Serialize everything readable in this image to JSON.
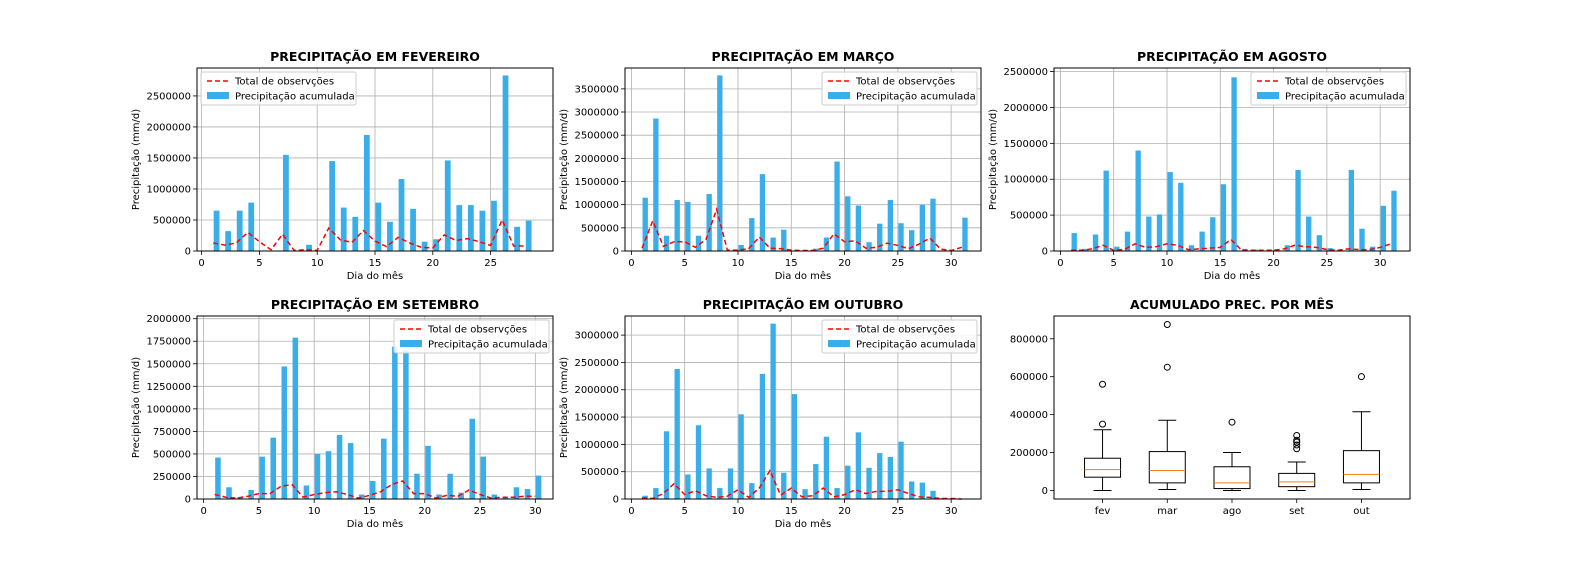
{
  "chart_data": [
    {
      "type": "bar",
      "title": "PRECIPITAÇÃO EM FEVEREIRO",
      "xlabel": "Dia do mês",
      "ylabel": "Precipitação (mm/d)",
      "xlim": [
        -0.4,
        30.4
      ],
      "ylim": [
        0,
        2950000
      ],
      "xticks": [
        0,
        5,
        10,
        15,
        20,
        25
      ],
      "yticks": [
        0,
        500000,
        1000000,
        1500000,
        2000000,
        2500000
      ],
      "legend_position": "top-left",
      "grid": true,
      "x": [
        1,
        2,
        3,
        4,
        5,
        6,
        7,
        8,
        9,
        10,
        11,
        12,
        13,
        14,
        15,
        16,
        17,
        18,
        19,
        20,
        21,
        22,
        23,
        24,
        25,
        26,
        27,
        28
      ],
      "series": [
        {
          "name": "Total de observções",
          "kind": "line",
          "color": "#ff0000",
          "values": [
            130000,
            95000,
            130000,
            300000,
            150000,
            20000,
            270000,
            10000,
            20000,
            10000,
            370000,
            180000,
            140000,
            330000,
            160000,
            70000,
            220000,
            130000,
            60000,
            50000,
            260000,
            170000,
            200000,
            150000,
            90000,
            500000,
            80000,
            80000
          ]
        },
        {
          "name": "Precipitação acumulada",
          "kind": "bar",
          "color": "#3aaee9",
          "values": [
            650000,
            320000,
            650000,
            780000,
            0,
            0,
            1550000,
            0,
            100000,
            0,
            1450000,
            700000,
            550000,
            1870000,
            780000,
            470000,
            1160000,
            680000,
            150000,
            190000,
            1460000,
            740000,
            740000,
            650000,
            810000,
            2830000,
            390000,
            490000
          ]
        }
      ]
    },
    {
      "type": "bar",
      "title": "PRECIPITAÇÃO EM MARÇO",
      "xlabel": "Dia do mês",
      "ylabel": "Precipitação (mm/d)",
      "xlim": [
        -0.6,
        32.8
      ],
      "ylim": [
        0,
        3950000
      ],
      "xticks": [
        0,
        5,
        10,
        15,
        20,
        25,
        30
      ],
      "yticks": [
        0,
        500000,
        1000000,
        1500000,
        2000000,
        2500000,
        3000000,
        3500000
      ],
      "legend_position": "top-right",
      "grid": true,
      "x": [
        1,
        2,
        3,
        4,
        5,
        6,
        7,
        8,
        9,
        10,
        11,
        12,
        13,
        14,
        15,
        16,
        17,
        18,
        19,
        20,
        21,
        22,
        23,
        24,
        25,
        26,
        27,
        28,
        29,
        30,
        31
      ],
      "series": [
        {
          "name": "Total de observções",
          "kind": "line",
          "color": "#ff0000",
          "values": [
            60000,
            650000,
            100000,
            200000,
            200000,
            80000,
            250000,
            900000,
            20000,
            20000,
            50000,
            300000,
            60000,
            50000,
            20000,
            10000,
            10000,
            60000,
            370000,
            200000,
            220000,
            60000,
            80000,
            170000,
            120000,
            50000,
            150000,
            280000,
            40000,
            10000,
            80000
          ]
        },
        {
          "name": "Precipitação acumulada",
          "kind": "bar",
          "color": "#3aaee9",
          "values": [
            1150000,
            2860000,
            330000,
            1100000,
            1060000,
            330000,
            1230000,
            3790000,
            0,
            130000,
            710000,
            1660000,
            290000,
            460000,
            0,
            0,
            50000,
            290000,
            1930000,
            1180000,
            980000,
            190000,
            590000,
            1100000,
            600000,
            450000,
            1000000,
            1130000,
            0,
            0,
            720000
          ]
        }
      ]
    },
    {
      "type": "bar",
      "title": "PRECIPITAÇÃO EM AGOSTO",
      "xlabel": "Dia do mês",
      "ylabel": "Precipitação (mm/d)",
      "xlim": [
        -0.6,
        32.8
      ],
      "ylim": [
        0,
        2550000
      ],
      "xticks": [
        0,
        5,
        10,
        15,
        20,
        25,
        30
      ],
      "yticks": [
        0,
        500000,
        1000000,
        1500000,
        2000000,
        2500000
      ],
      "legend_position": "top-right",
      "grid": true,
      "x": [
        1,
        2,
        3,
        4,
        5,
        6,
        7,
        8,
        9,
        10,
        11,
        12,
        13,
        14,
        15,
        16,
        17,
        18,
        19,
        20,
        21,
        22,
        23,
        24,
        25,
        26,
        27,
        28,
        29,
        30,
        31
      ],
      "series": [
        {
          "name": "Total de observções",
          "kind": "line",
          "color": "#ff0000",
          "values": [
            10000,
            10000,
            30000,
            80000,
            10000,
            20000,
            100000,
            50000,
            60000,
            100000,
            80000,
            20000,
            30000,
            40000,
            50000,
            160000,
            10000,
            10000,
            10000,
            10000,
            30000,
            80000,
            60000,
            50000,
            20000,
            10000,
            30000,
            20000,
            20000,
            50000,
            100000
          ]
        },
        {
          "name": "Precipitação acumulada",
          "kind": "bar",
          "color": "#3aaee9",
          "values": [
            250000,
            30000,
            230000,
            1120000,
            60000,
            270000,
            1400000,
            480000,
            510000,
            1100000,
            950000,
            80000,
            270000,
            470000,
            930000,
            2420000,
            30000,
            20000,
            0,
            20000,
            80000,
            1130000,
            480000,
            220000,
            40000,
            0,
            1130000,
            310000,
            60000,
            630000,
            840000
          ]
        }
      ]
    },
    {
      "type": "bar",
      "title": "PRECIPITAÇÃO EM SETEMBRO",
      "xlabel": "Dia do mês",
      "ylabel": "Precipitação (mm/d)",
      "xlim": [
        -0.6,
        31.6
      ],
      "ylim": [
        0,
        2030000
      ],
      "xticks": [
        0,
        5,
        10,
        15,
        20,
        25,
        30
      ],
      "yticks": [
        0,
        250000,
        500000,
        750000,
        1000000,
        1250000,
        1500000,
        1750000,
        2000000
      ],
      "legend_position": "top-right",
      "grid": true,
      "x": [
        1,
        2,
        3,
        4,
        5,
        6,
        7,
        8,
        9,
        10,
        11,
        12,
        13,
        14,
        15,
        16,
        17,
        18,
        19,
        20,
        21,
        22,
        23,
        24,
        25,
        26,
        27,
        28,
        29,
        30
      ],
      "series": [
        {
          "name": "Total de observções",
          "kind": "line",
          "color": "#ff0000",
          "values": [
            50000,
            20000,
            10000,
            30000,
            60000,
            60000,
            140000,
            160000,
            20000,
            50000,
            70000,
            80000,
            50000,
            10000,
            40000,
            80000,
            160000,
            200000,
            60000,
            60000,
            10000,
            40000,
            30000,
            100000,
            50000,
            10000,
            20000,
            20000,
            30000,
            30000
          ]
        },
        {
          "name": "Precipitação acumulada",
          "kind": "bar",
          "color": "#3aaee9",
          "values": [
            460000,
            130000,
            20000,
            100000,
            470000,
            680000,
            1470000,
            1790000,
            150000,
            500000,
            530000,
            710000,
            620000,
            50000,
            200000,
            670000,
            1690000,
            1650000,
            280000,
            590000,
            50000,
            280000,
            70000,
            890000,
            470000,
            50000,
            20000,
            130000,
            110000,
            260000
          ]
        }
      ]
    },
    {
      "type": "bar",
      "title": "PRECIPITAÇÃO EM OUTUBRO",
      "xlabel": "Dia do mês",
      "ylabel": "Precipitação (mm/d)",
      "xlim": [
        -0.6,
        32.8
      ],
      "ylim": [
        0,
        3350000
      ],
      "xticks": [
        0,
        5,
        10,
        15,
        20,
        25,
        30
      ],
      "yticks": [
        0,
        500000,
        1000000,
        1500000,
        2000000,
        2500000,
        3000000
      ],
      "legend_position": "top-right",
      "grid": true,
      "x": [
        1,
        2,
        3,
        4,
        5,
        6,
        7,
        8,
        9,
        10,
        11,
        12,
        13,
        14,
        15,
        16,
        17,
        18,
        19,
        20,
        21,
        22,
        23,
        24,
        25,
        26,
        27,
        28,
        29,
        30,
        31
      ],
      "series": [
        {
          "name": "Total de observções",
          "kind": "line",
          "color": "#ff0000",
          "values": [
            20000,
            10000,
            100000,
            280000,
            80000,
            150000,
            60000,
            30000,
            50000,
            170000,
            30000,
            200000,
            520000,
            70000,
            200000,
            40000,
            60000,
            200000,
            40000,
            80000,
            170000,
            100000,
            140000,
            140000,
            170000,
            100000,
            40000,
            30000,
            10000,
            10000,
            0
          ]
        },
        {
          "name": "Precipitação acumulada",
          "kind": "bar",
          "color": "#3aaee9",
          "values": [
            60000,
            200000,
            1240000,
            2380000,
            450000,
            1350000,
            560000,
            200000,
            560000,
            1550000,
            290000,
            2290000,
            3210000,
            480000,
            1920000,
            180000,
            640000,
            1140000,
            200000,
            610000,
            1220000,
            570000,
            840000,
            770000,
            1050000,
            320000,
            300000,
            150000,
            20000,
            10000,
            0
          ]
        }
      ]
    },
    {
      "type": "box",
      "title": "ACUMULADO PREC. POR MÊS",
      "ylim": [
        -45000,
        920000
      ],
      "yticks": [
        0,
        200000,
        400000,
        600000,
        800000
      ],
      "categories": [
        "fev",
        "mar",
        "ago",
        "set",
        "out"
      ],
      "boxes": [
        {
          "whislo": 0,
          "q1": 70000,
          "med": 110000,
          "q3": 170000,
          "whishi": 320000,
          "fliers": [
            350000,
            560000
          ]
        },
        {
          "whislo": 5000,
          "q1": 40000,
          "med": 105000,
          "q3": 205000,
          "whishi": 370000,
          "fliers": [
            650000,
            875000
          ]
        },
        {
          "whislo": 0,
          "q1": 10000,
          "med": 40000,
          "q3": 125000,
          "whishi": 200000,
          "fliers": [
            360000
          ]
        },
        {
          "whislo": 0,
          "q1": 20000,
          "med": 45000,
          "q3": 90000,
          "whishi": 150000,
          "fliers": [
            220000,
            240000,
            255000,
            265000,
            290000
          ]
        },
        {
          "whislo": 5000,
          "q1": 40000,
          "med": 85000,
          "q3": 210000,
          "whishi": 415000,
          "fliers": [
            600000
          ]
        }
      ],
      "box_color": "#000000",
      "median_color": "#ff7f0e"
    }
  ]
}
